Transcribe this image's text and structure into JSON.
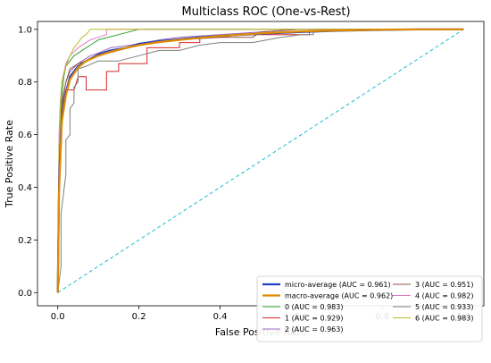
{
  "chart_data": {
    "type": "line",
    "title": "Multiclass ROC (One-vs-Rest)",
    "xlabel": "False Positive Rate",
    "ylabel": "True Positive Rate",
    "xlim": [
      -0.05,
      1.05
    ],
    "ylim": [
      -0.05,
      1.03
    ],
    "xticks": [
      "0.0",
      "0.2",
      "0.4",
      "0.6",
      "0.8",
      "1.0"
    ],
    "yticks": [
      "0.0",
      "0.2",
      "0.4",
      "0.6",
      "0.8",
      "1.0"
    ],
    "grid": false,
    "legend_position": "lower-right",
    "diagonal": {
      "x": [
        0,
        1
      ],
      "y": [
        0,
        1
      ],
      "color": "#17becf",
      "style": "dashed"
    },
    "series": [
      {
        "name": "micro-average (AUC = 0.961)",
        "color": "#1f3fbf",
        "width": 2.2,
        "x": [
          0,
          0.003,
          0.005,
          0.01,
          0.02,
          0.03,
          0.05,
          0.07,
          0.1,
          0.13,
          0.17,
          0.2,
          0.25,
          0.3,
          0.35,
          0.4,
          0.5,
          0.6,
          0.7,
          0.8,
          0.9,
          1.0
        ],
        "y": [
          0,
          0.4,
          0.5,
          0.66,
          0.76,
          0.82,
          0.86,
          0.88,
          0.905,
          0.92,
          0.93,
          0.945,
          0.955,
          0.962,
          0.97,
          0.975,
          0.983,
          0.99,
          0.995,
          0.998,
          1.0,
          1.0
        ]
      },
      {
        "name": "macro-average (AUC = 0.962)",
        "color": "#e08a00",
        "width": 2.2,
        "x": [
          0,
          0.003,
          0.006,
          0.01,
          0.02,
          0.03,
          0.05,
          0.07,
          0.1,
          0.13,
          0.17,
          0.2,
          0.25,
          0.3,
          0.35,
          0.4,
          0.5,
          0.6,
          0.7,
          0.8,
          0.9,
          1.0
        ],
        "y": [
          0,
          0.38,
          0.5,
          0.65,
          0.75,
          0.81,
          0.855,
          0.88,
          0.9,
          0.915,
          0.93,
          0.94,
          0.952,
          0.96,
          0.968,
          0.975,
          0.985,
          0.992,
          0.996,
          0.999,
          1.0,
          1.0
        ]
      },
      {
        "name": "0 (AUC = 0.983)",
        "color": "#2ca02c",
        "width": 1,
        "x": [
          0,
          0.003,
          0.006,
          0.01,
          0.015,
          0.02,
          0.03,
          0.04,
          0.06,
          0.08,
          0.1,
          0.15,
          0.2,
          0.3,
          0.5,
          1.0
        ],
        "y": [
          0,
          0.42,
          0.6,
          0.75,
          0.82,
          0.86,
          0.88,
          0.9,
          0.92,
          0.94,
          0.96,
          0.98,
          1.0,
          1.0,
          1.0,
          1.0
        ]
      },
      {
        "name": "1 (AUC = 0.929)",
        "color": "#d62728",
        "width": 1,
        "x": [
          0,
          0.005,
          0.01,
          0.02,
          0.02,
          0.04,
          0.05,
          0.07,
          0.07,
          0.12,
          0.12,
          0.15,
          0.15,
          0.2,
          0.22,
          0.22,
          0.3,
          0.3,
          0.35,
          0.35,
          0.4,
          0.45,
          0.5,
          0.62,
          0.62,
          1.0
        ],
        "y": [
          0,
          0.5,
          0.7,
          0.77,
          0.77,
          0.77,
          0.82,
          0.82,
          0.77,
          0.77,
          0.84,
          0.84,
          0.87,
          0.87,
          0.87,
          0.93,
          0.93,
          0.95,
          0.95,
          0.97,
          0.97,
          0.98,
          0.98,
          0.98,
          1.0,
          1.0
        ]
      },
      {
        "name": "2 (AUC = 0.963)",
        "color": "#9467bd",
        "width": 1,
        "x": [
          0,
          0.003,
          0.006,
          0.012,
          0.02,
          0.03,
          0.05,
          0.08,
          0.1,
          0.13,
          0.18,
          0.25,
          0.3,
          0.4,
          0.5,
          0.6,
          1.0
        ],
        "y": [
          0,
          0.45,
          0.6,
          0.72,
          0.8,
          0.84,
          0.87,
          0.9,
          0.91,
          0.93,
          0.94,
          0.96,
          0.97,
          0.98,
          0.99,
          1.0,
          1.0
        ]
      },
      {
        "name": "3 (AUC = 0.951)",
        "color": "#8c564b",
        "width": 1,
        "x": [
          0,
          0.003,
          0.008,
          0.012,
          0.02,
          0.03,
          0.05,
          0.07,
          0.1,
          0.15,
          0.2,
          0.25,
          0.3,
          0.4,
          0.48,
          0.5,
          0.6,
          1.0
        ],
        "y": [
          0,
          0.47,
          0.62,
          0.74,
          0.8,
          0.85,
          0.87,
          0.88,
          0.9,
          0.92,
          0.94,
          0.95,
          0.96,
          0.97,
          0.97,
          0.99,
          1.0,
          1.0
        ]
      },
      {
        "name": "4 (AUC = 0.982)",
        "color": "#e377c2",
        "width": 1,
        "x": [
          0,
          0.003,
          0.006,
          0.01,
          0.02,
          0.03,
          0.05,
          0.08,
          0.1,
          0.12,
          0.12,
          0.3,
          1.0
        ],
        "y": [
          0,
          0.6,
          0.72,
          0.8,
          0.87,
          0.9,
          0.93,
          0.96,
          0.97,
          0.98,
          1.0,
          1.0,
          1.0
        ]
      },
      {
        "name": "5 (AUC = 0.933)",
        "color": "#7f7f7f",
        "width": 1,
        "x": [
          0,
          0.008,
          0.008,
          0.02,
          0.02,
          0.03,
          0.03,
          0.04,
          0.04,
          0.05,
          0.05,
          0.07,
          0.1,
          0.15,
          0.2,
          0.25,
          0.3,
          0.35,
          0.4,
          0.48,
          0.55,
          0.6,
          0.63,
          0.63,
          1.0
        ],
        "y": [
          0,
          0.1,
          0.3,
          0.45,
          0.58,
          0.6,
          0.7,
          0.72,
          0.78,
          0.8,
          0.85,
          0.86,
          0.88,
          0.88,
          0.9,
          0.92,
          0.92,
          0.94,
          0.95,
          0.95,
          0.97,
          0.98,
          0.98,
          1.0,
          1.0
        ]
      },
      {
        "name": "6 (AUC = 0.983)",
        "color": "#bcbd22",
        "width": 1,
        "x": [
          0,
          0.003,
          0.006,
          0.01,
          0.02,
          0.03,
          0.04,
          0.05,
          0.06,
          0.07,
          0.08,
          0.1,
          0.3,
          1.0
        ],
        "y": [
          0,
          0.55,
          0.7,
          0.8,
          0.86,
          0.9,
          0.93,
          0.95,
          0.97,
          0.98,
          1.0,
          1.0,
          1.0,
          1.0
        ]
      }
    ]
  }
}
